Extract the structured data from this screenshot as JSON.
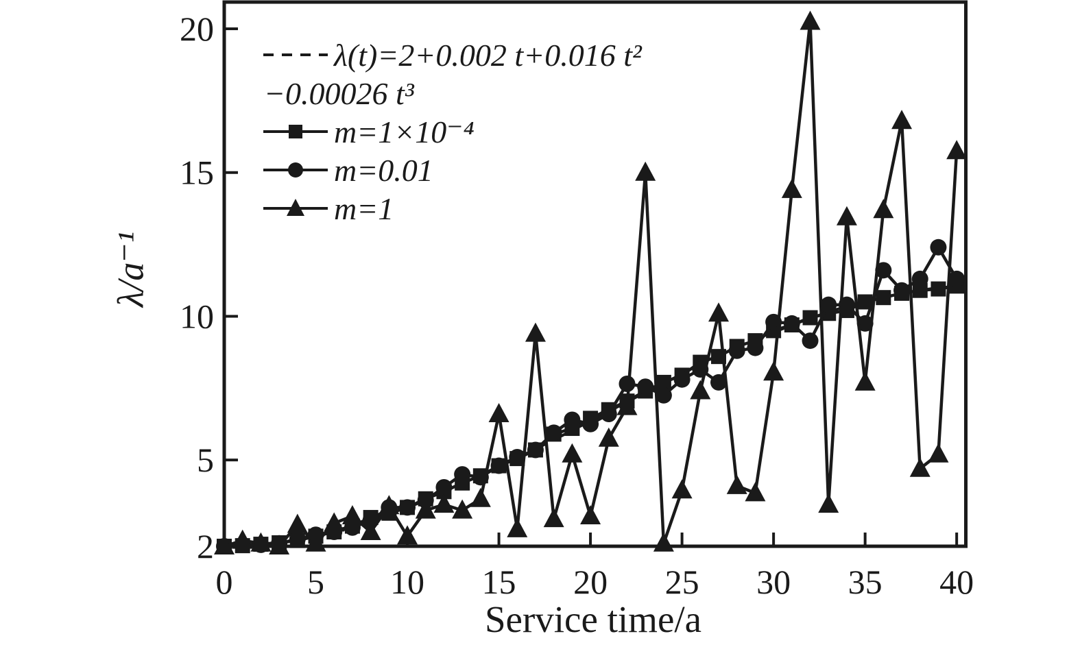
{
  "chart_data": {
    "type": "line",
    "title": "",
    "xlabel": "Service time/a",
    "ylabel": "λ/a⁻¹",
    "xlim": [
      0,
      40.5
    ],
    "ylim": [
      2,
      20.93
    ],
    "grid": false,
    "frame": true,
    "legend_position": "top-left-inside",
    "colors": {
      "ink": "#1a1a1a",
      "background": "#ffffff"
    },
    "xticks": {
      "values": [
        0,
        5,
        10,
        15,
        20,
        25,
        30,
        35,
        40
      ],
      "labels": [
        "0",
        "5",
        "10",
        "15",
        "20",
        "25",
        "30",
        "35",
        "40"
      ]
    },
    "yticks": {
      "values": [
        2,
        5,
        10,
        15,
        20
      ],
      "labels": [
        "2",
        "5",
        "10",
        "15",
        "20"
      ]
    },
    "x": [
      0,
      1,
      2,
      3,
      4,
      5,
      6,
      7,
      8,
      9,
      10,
      11,
      12,
      13,
      14,
      15,
      16,
      17,
      18,
      19,
      20,
      21,
      22,
      23,
      24,
      25,
      26,
      27,
      28,
      29,
      30,
      31,
      32,
      33,
      34,
      35,
      36,
      37,
      38,
      39,
      40
    ],
    "series": [
      {
        "name": "λ(t)=2+0.002 t+0.016 t²",
        "name_line2": "−0.00026 t³",
        "line": "dashed",
        "marker": "none",
        "values": [
          2.0,
          2.02,
          2.07,
          2.14,
          2.25,
          2.38,
          2.53,
          2.71,
          2.91,
          3.12,
          3.36,
          3.61,
          3.88,
          4.16,
          4.45,
          4.75,
          5.06,
          5.38,
          5.7,
          6.03,
          6.36,
          6.69,
          7.02,
          7.35,
          7.67,
          7.99,
          8.3,
          8.6,
          8.89,
          9.17,
          9.44,
          9.69,
          9.93,
          10.15,
          10.35,
          10.52,
          10.68,
          10.81,
          10.91,
          10.99,
          11.04
        ]
      },
      {
        "name": "m=1×10⁻⁴",
        "line": "solid",
        "marker": "square",
        "values": [
          2.0,
          2.02,
          2.07,
          2.12,
          2.2,
          2.35,
          2.5,
          2.7,
          3.0,
          3.15,
          3.35,
          3.65,
          3.9,
          4.2,
          4.45,
          4.8,
          5.05,
          5.35,
          5.9,
          6.1,
          6.45,
          6.75,
          7.05,
          7.4,
          7.7,
          7.95,
          8.4,
          8.6,
          8.95,
          9.15,
          9.5,
          9.7,
          9.95,
          10.1,
          10.2,
          10.5,
          10.65,
          10.8,
          10.9,
          10.95,
          11.05
        ]
      },
      {
        "name": "m=0.01",
        "line": "solid",
        "marker": "circle",
        "values": [
          2.0,
          2.05,
          2.05,
          2.1,
          2.25,
          2.4,
          2.5,
          2.65,
          2.9,
          3.35,
          3.35,
          3.6,
          4.05,
          4.5,
          4.4,
          4.8,
          5.1,
          5.35,
          5.95,
          6.4,
          6.25,
          6.6,
          7.65,
          7.55,
          7.25,
          7.8,
          8.15,
          7.7,
          8.8,
          8.9,
          9.8,
          9.75,
          9.15,
          10.4,
          10.4,
          9.75,
          11.6,
          10.9,
          11.3,
          12.4,
          11.3
        ]
      },
      {
        "name": "m=1",
        "line": "solid",
        "marker": "triangle",
        "values": [
          2.0,
          2.2,
          2.1,
          2.0,
          2.75,
          2.1,
          2.8,
          3.05,
          2.5,
          3.4,
          2.35,
          3.25,
          3.45,
          3.25,
          3.65,
          6.6,
          2.6,
          9.4,
          2.95,
          5.2,
          3.05,
          5.75,
          6.85,
          15.0,
          2.1,
          3.95,
          7.4,
          10.1,
          4.1,
          3.85,
          8.05,
          14.4,
          20.25,
          3.45,
          13.45,
          7.7,
          13.7,
          16.8,
          4.7,
          5.2,
          15.75
        ]
      }
    ]
  }
}
